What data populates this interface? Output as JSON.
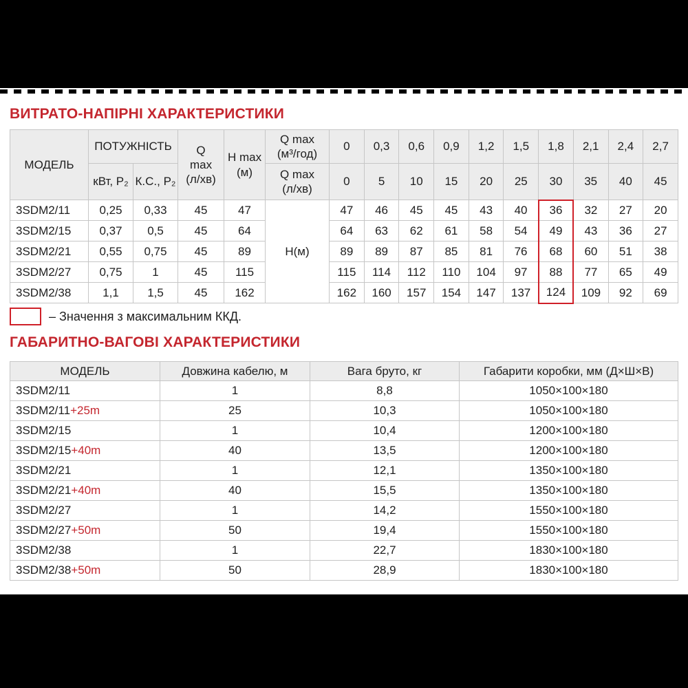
{
  "page": {
    "accent_red": "#c4262e",
    "highlight_red": "#cf2028",
    "top_bar_color": "#000000",
    "bottom_bar_color": "#000000",
    "header_fill": "#ececec"
  },
  "flow_section": {
    "title": "ВИТРАТО-НАПІРНІ ХАРАКТЕРИСТИКИ",
    "legend_text": "– Значення з максимальним ККД.",
    "table": {
      "header": {
        "model": "МОДЕЛЬ",
        "power": "ПОТУЖНІСТЬ",
        "power_kw": "кВт, P₂",
        "power_hp": "К.С., P₂",
        "qmax": "Q\nmax\n(л/хв)",
        "hmax": "H max\n(м)",
        "qmax_m3": "Q max\n(м³/год)",
        "qmax_l": "Q max\n(л/хв)"
      },
      "flow_m3h": [
        "0",
        "0,3",
        "0,6",
        "0,9",
        "1,2",
        "1,5",
        "1,8",
        "2,1",
        "2,4",
        "2,7"
      ],
      "flow_lmin": [
        "0",
        "5",
        "10",
        "15",
        "20",
        "25",
        "30",
        "35",
        "40",
        "45"
      ],
      "h_label": "Н(м)",
      "highlight_col": 6,
      "rows": [
        {
          "model": "3SDM2/11",
          "kw": "0,25",
          "hp": "0,33",
          "qmax": "45",
          "hmax": "47",
          "values": [
            "47",
            "46",
            "45",
            "45",
            "43",
            "40",
            "36",
            "32",
            "27",
            "20"
          ]
        },
        {
          "model": "3SDM2/15",
          "kw": "0,37",
          "hp": "0,5",
          "qmax": "45",
          "hmax": "64",
          "values": [
            "64",
            "63",
            "62",
            "61",
            "58",
            "54",
            "49",
            "43",
            "36",
            "27"
          ]
        },
        {
          "model": "3SDM2/21",
          "kw": "0,55",
          "hp": "0,75",
          "qmax": "45",
          "hmax": "89",
          "values": [
            "89",
            "89",
            "87",
            "85",
            "81",
            "76",
            "68",
            "60",
            "51",
            "38"
          ]
        },
        {
          "model": "3SDM2/27",
          "kw": "0,75",
          "hp": "1",
          "qmax": "45",
          "hmax": "115",
          "values": [
            "115",
            "114",
            "112",
            "110",
            "104",
            "97",
            "88",
            "77",
            "65",
            "49"
          ]
        },
        {
          "model": "3SDM2/38",
          "kw": "1,1",
          "hp": "1,5",
          "qmax": "45",
          "hmax": "162",
          "values": [
            "162",
            "160",
            "157",
            "154",
            "147",
            "137",
            "124",
            "109",
            "92",
            "69"
          ]
        }
      ]
    }
  },
  "dim_section": {
    "title": "ГАБАРИТНО-ВАГОВІ ХАРАКТЕРИСТИКИ",
    "table": {
      "headers": [
        "МОДЕЛЬ",
        "Довжина кабелю, м",
        "Вага бруто, кг",
        "Габарити коробки, мм (Д×Ш×В)"
      ],
      "rows": [
        {
          "model": "3SDM2/11",
          "suffix": "",
          "cable": "1",
          "weight": "8,8",
          "box": "1050×100×180"
        },
        {
          "model": "3SDM2/11",
          "suffix": "+25m",
          "cable": "25",
          "weight": "10,3",
          "box": "1050×100×180"
        },
        {
          "model": "3SDM2/15",
          "suffix": "",
          "cable": "1",
          "weight": "10,4",
          "box": "1200×100×180"
        },
        {
          "model": "3SDM2/15",
          "suffix": "+40m",
          "cable": "40",
          "weight": "13,5",
          "box": "1200×100×180"
        },
        {
          "model": "3SDM2/21",
          "suffix": "",
          "cable": "1",
          "weight": "12,1",
          "box": "1350×100×180"
        },
        {
          "model": "3SDM2/21",
          "suffix": "+40m",
          "cable": "40",
          "weight": "15,5",
          "box": "1350×100×180"
        },
        {
          "model": "3SDM2/27",
          "suffix": "",
          "cable": "1",
          "weight": "14,2",
          "box": "1550×100×180"
        },
        {
          "model": "3SDM2/27",
          "suffix": "+50m",
          "cable": "50",
          "weight": "19,4",
          "box": "1550×100×180"
        },
        {
          "model": "3SDM2/38",
          "suffix": "",
          "cable": "1",
          "weight": "22,7",
          "box": "1830×100×180"
        },
        {
          "model": "3SDM2/38",
          "suffix": "+50m",
          "cable": "50",
          "weight": "28,9",
          "box": "1830×100×180"
        }
      ]
    }
  }
}
